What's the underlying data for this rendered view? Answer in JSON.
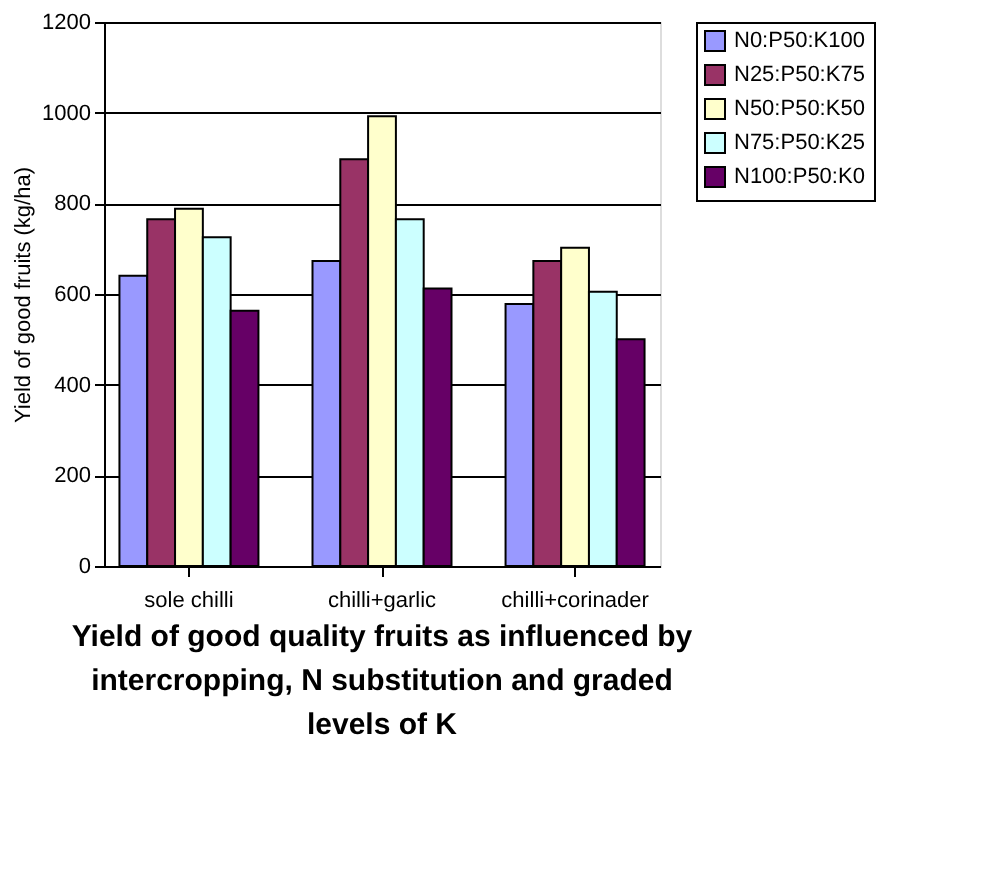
{
  "chart_data": {
    "type": "bar",
    "title": "Yield of good quality fruits as influenced by intercropping, N substitution and graded levels of K",
    "ylabel": "Yield of good fruits (kg/ha)",
    "categories": [
      "sole chilli",
      "chilli+garlic",
      "chilli+corinader"
    ],
    "series": [
      {
        "name": "N0:P50:K100",
        "color": "#9999ff",
        "values": [
          640,
          673,
          578
        ]
      },
      {
        "name": "N25:P50:K75",
        "color": "#993366",
        "values": [
          765,
          897,
          673
        ]
      },
      {
        "name": "N50:P50:K50",
        "color": "#ffffcc",
        "values": [
          788,
          992,
          702
        ]
      },
      {
        "name": "N75:P50:K25",
        "color": "#ccffff",
        "values": [
          725,
          765,
          605
        ]
      },
      {
        "name": "N100:P50:K0",
        "color": "#660066",
        "values": [
          563,
          612,
          500
        ]
      }
    ],
    "ylim": [
      0,
      1200
    ],
    "yticks": [
      0,
      200,
      400,
      600,
      800,
      1000,
      1200
    ],
    "grid": "y",
    "legend": "right"
  }
}
